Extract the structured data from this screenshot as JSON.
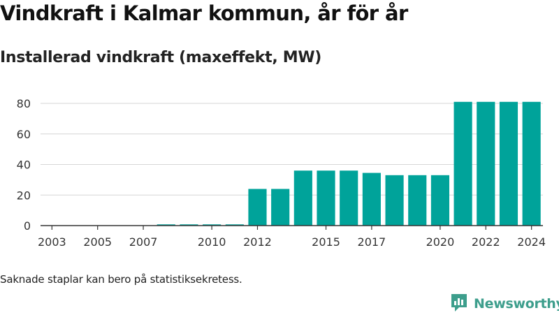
{
  "title": "Vindkraft i Kalmar kommun, år för år",
  "subtitle": "Installerad vindkraft (maxeffekt, MW)",
  "footnote": "Saknade staplar kan bero på statistiksekretess.",
  "brand": {
    "name": "Newsworthy",
    "icon": "newsworthy-logo-icon",
    "color": "#3d9e8c"
  },
  "chart_data": {
    "type": "bar",
    "categories": [
      "2003",
      "2004",
      "2005",
      "2006",
      "2007",
      "2008",
      "2009",
      "2010",
      "2011",
      "2012",
      "2013",
      "2014",
      "2015",
      "2016",
      "2017",
      "2018",
      "2019",
      "2020",
      "2021",
      "2022",
      "2023",
      "2024"
    ],
    "values": [
      0,
      0,
      0,
      0,
      0,
      0.8,
      0.8,
      0.8,
      0.8,
      24,
      24,
      36,
      36,
      36,
      34.5,
      33,
      33,
      33,
      81,
      81,
      81,
      81
    ],
    "x_tick_labels": [
      "2003",
      "2005",
      "2007",
      "2010",
      "2012",
      "2015",
      "2017",
      "2020",
      "2022",
      "2024"
    ],
    "y_ticks": [
      0,
      20,
      40,
      60,
      80
    ],
    "ylim": [
      0,
      80
    ],
    "grid": true,
    "bar_color": "#00a39a",
    "xlabel": "",
    "ylabel": ""
  }
}
